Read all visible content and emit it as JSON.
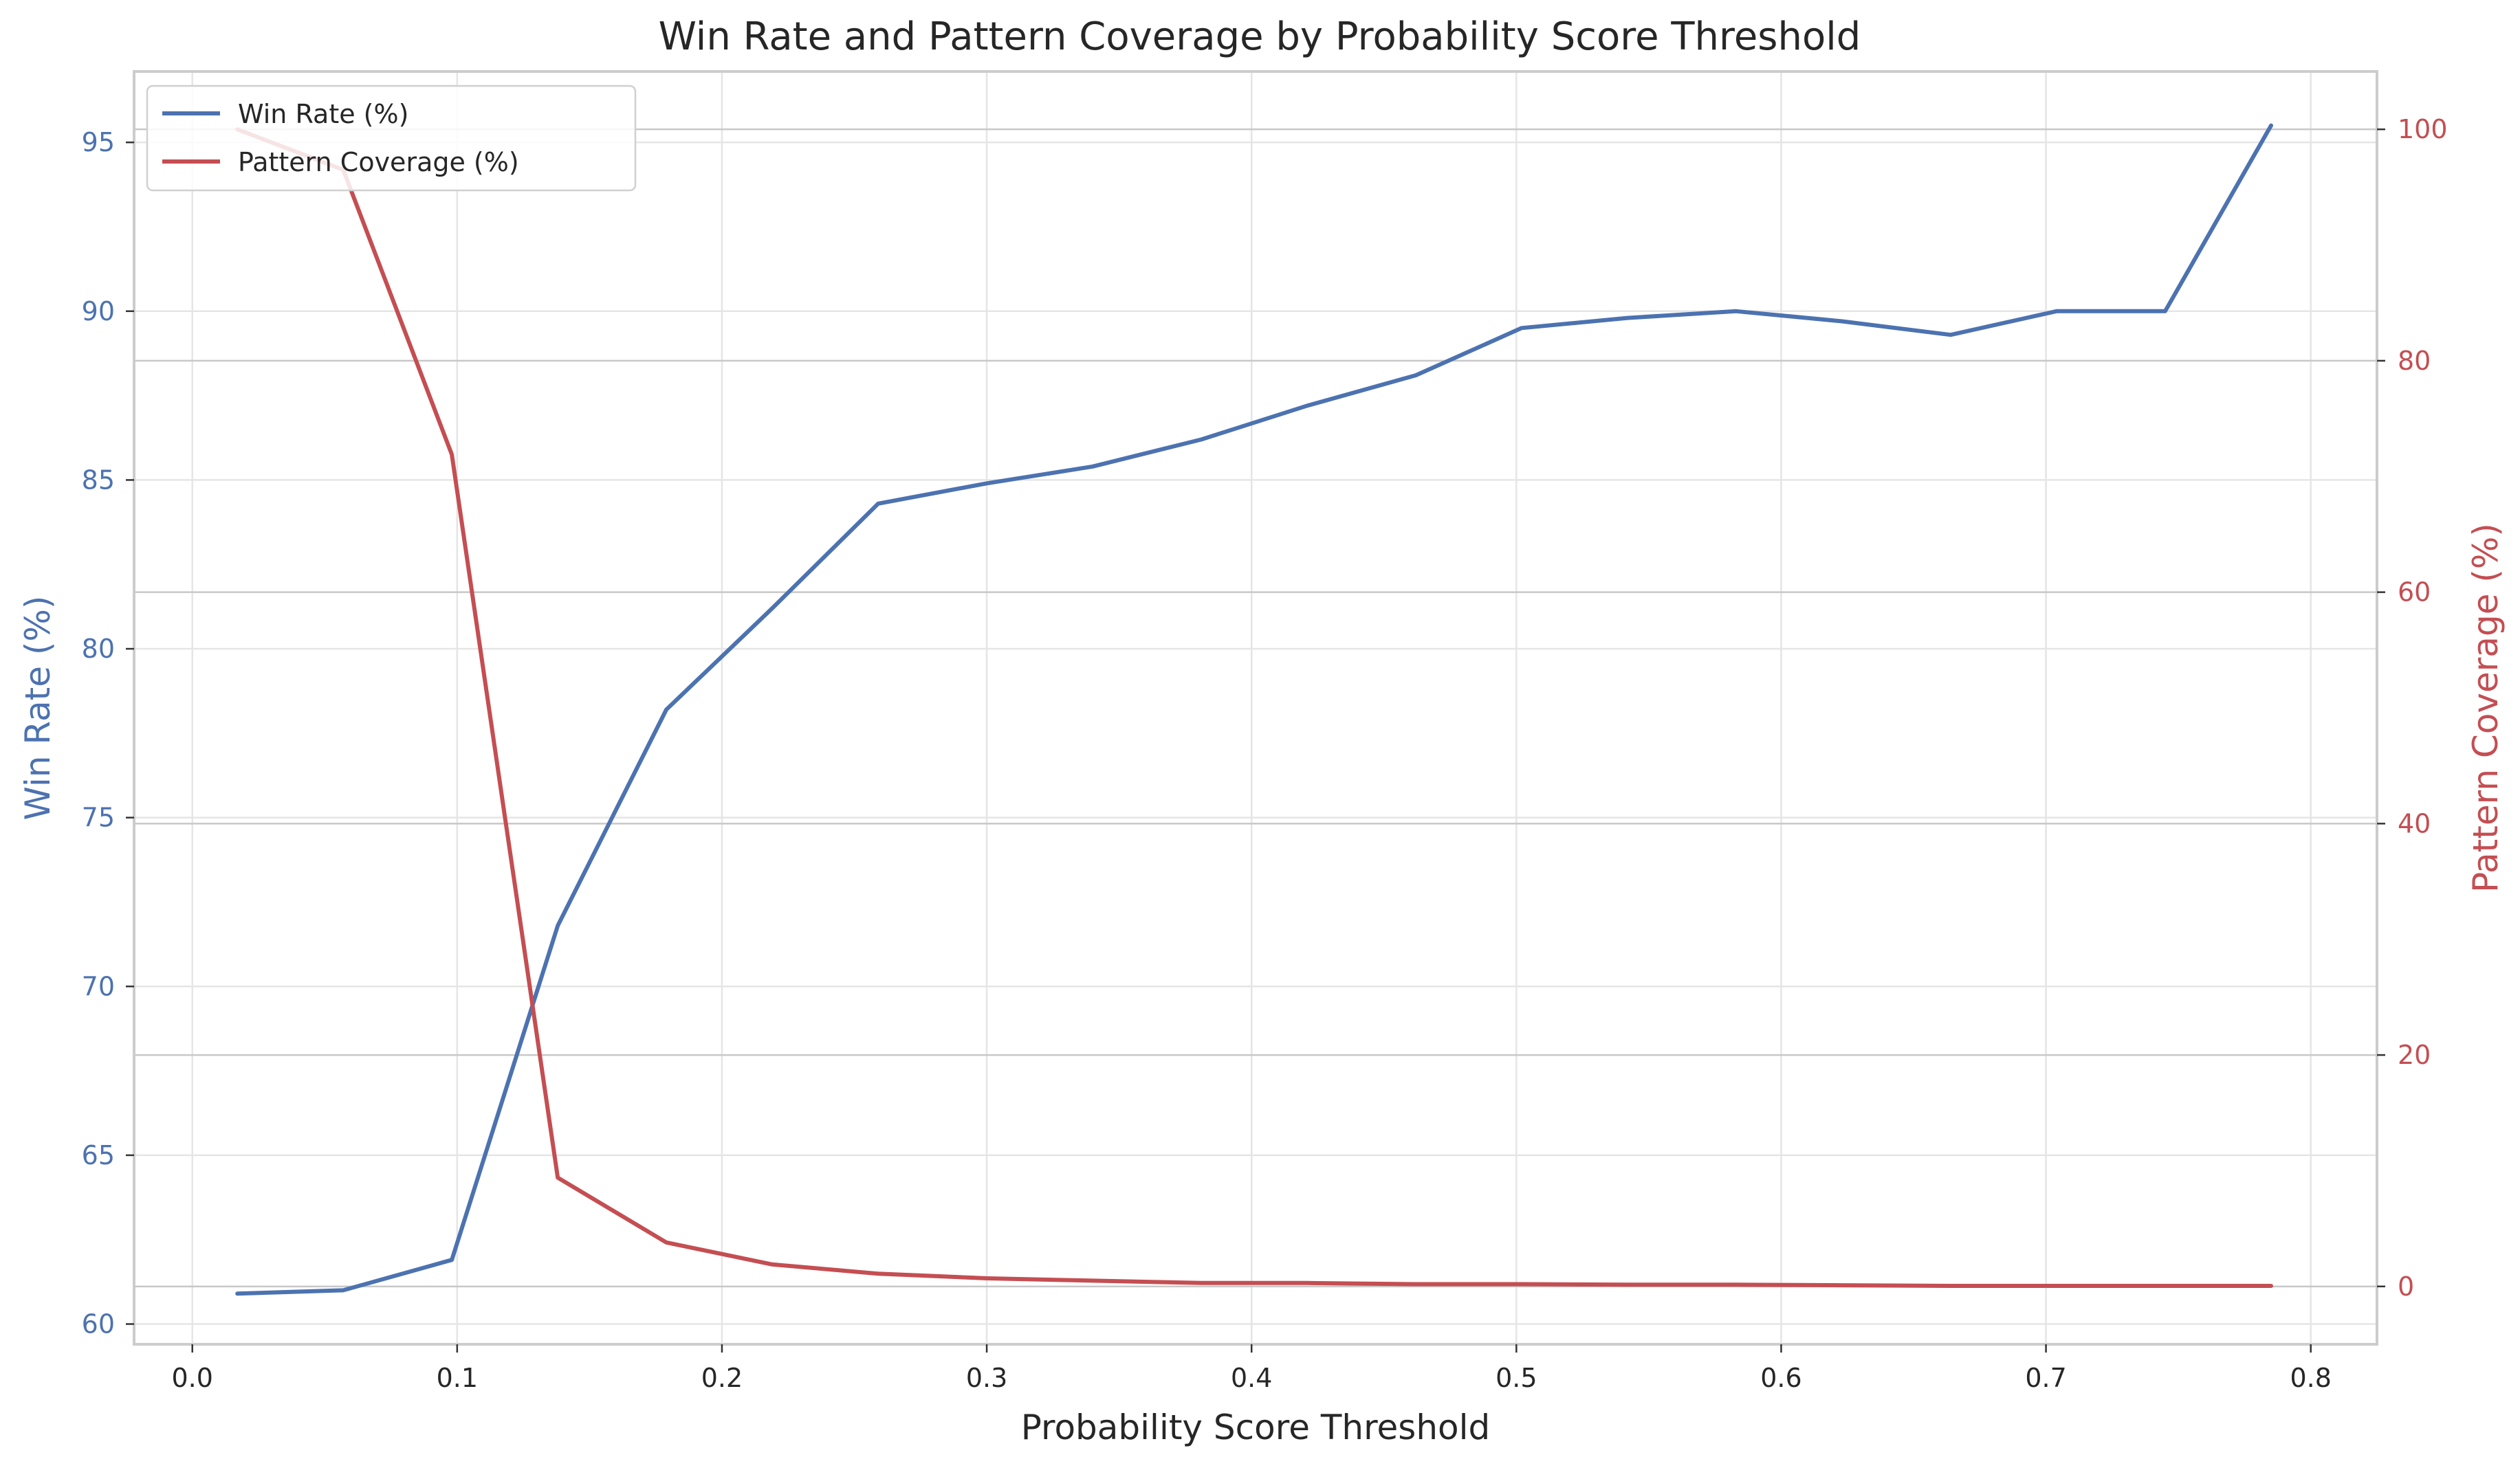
{
  "chart_data": {
    "type": "line",
    "title": "Win Rate and Pattern Coverage by Probability Score Threshold",
    "xlabel": "Probability Score Threshold",
    "ylabel": "Win Rate (%)",
    "y2label": "Pattern Coverage (%)",
    "xlim": [
      -0.022,
      0.825
    ],
    "ylim": [
      59.4,
      97.1
    ],
    "y2lim": [
      -5,
      105
    ],
    "xticks": [
      "0.0",
      "0.1",
      "0.2",
      "0.3",
      "0.4",
      "0.5",
      "0.6",
      "0.7",
      "0.8"
    ],
    "xtick_values": [
      0.0,
      0.1,
      0.2,
      0.3,
      0.4,
      0.5,
      0.6,
      0.7,
      0.8
    ],
    "yticks": [
      "60",
      "65",
      "70",
      "75",
      "80",
      "85",
      "90",
      "95"
    ],
    "ytick_values": [
      60,
      65,
      70,
      75,
      80,
      85,
      90,
      95
    ],
    "y2ticks": [
      "0",
      "20",
      "40",
      "60",
      "80",
      "100"
    ],
    "y2tick_values": [
      0,
      20,
      40,
      60,
      80,
      100
    ],
    "grid": true,
    "legend_position": "top-left",
    "x": [
      0.017,
      0.057,
      0.098,
      0.138,
      0.179,
      0.219,
      0.259,
      0.3,
      0.34,
      0.381,
      0.421,
      0.462,
      0.502,
      0.542,
      0.583,
      0.623,
      0.664,
      0.704,
      0.745,
      0.785
    ],
    "series": [
      {
        "name": "Win Rate (%)",
        "axis": "left",
        "color": "#4c72b0",
        "values": [
          60.9,
          61.0,
          61.9,
          71.8,
          78.2,
          81.2,
          84.3,
          84.9,
          85.4,
          86.2,
          87.2,
          88.1,
          89.5,
          89.8,
          90.0,
          89.7,
          89.3,
          90.0,
          90.0,
          95.5
        ]
      },
      {
        "name": "Pattern Coverage (%)",
        "axis": "right",
        "color": "#c44e52",
        "values": [
          100,
          96.5,
          71.9,
          9.4,
          3.8,
          1.9,
          1.1,
          0.7,
          0.5,
          0.3,
          0.3,
          0.2,
          0.2,
          0.15,
          0.15,
          0.1,
          0.05,
          0.05,
          0.05,
          0.05
        ]
      }
    ],
    "left_tick_color": "#4c72b0",
    "right_tick_color": "#c44e52",
    "x_tick_color": "#262626"
  }
}
